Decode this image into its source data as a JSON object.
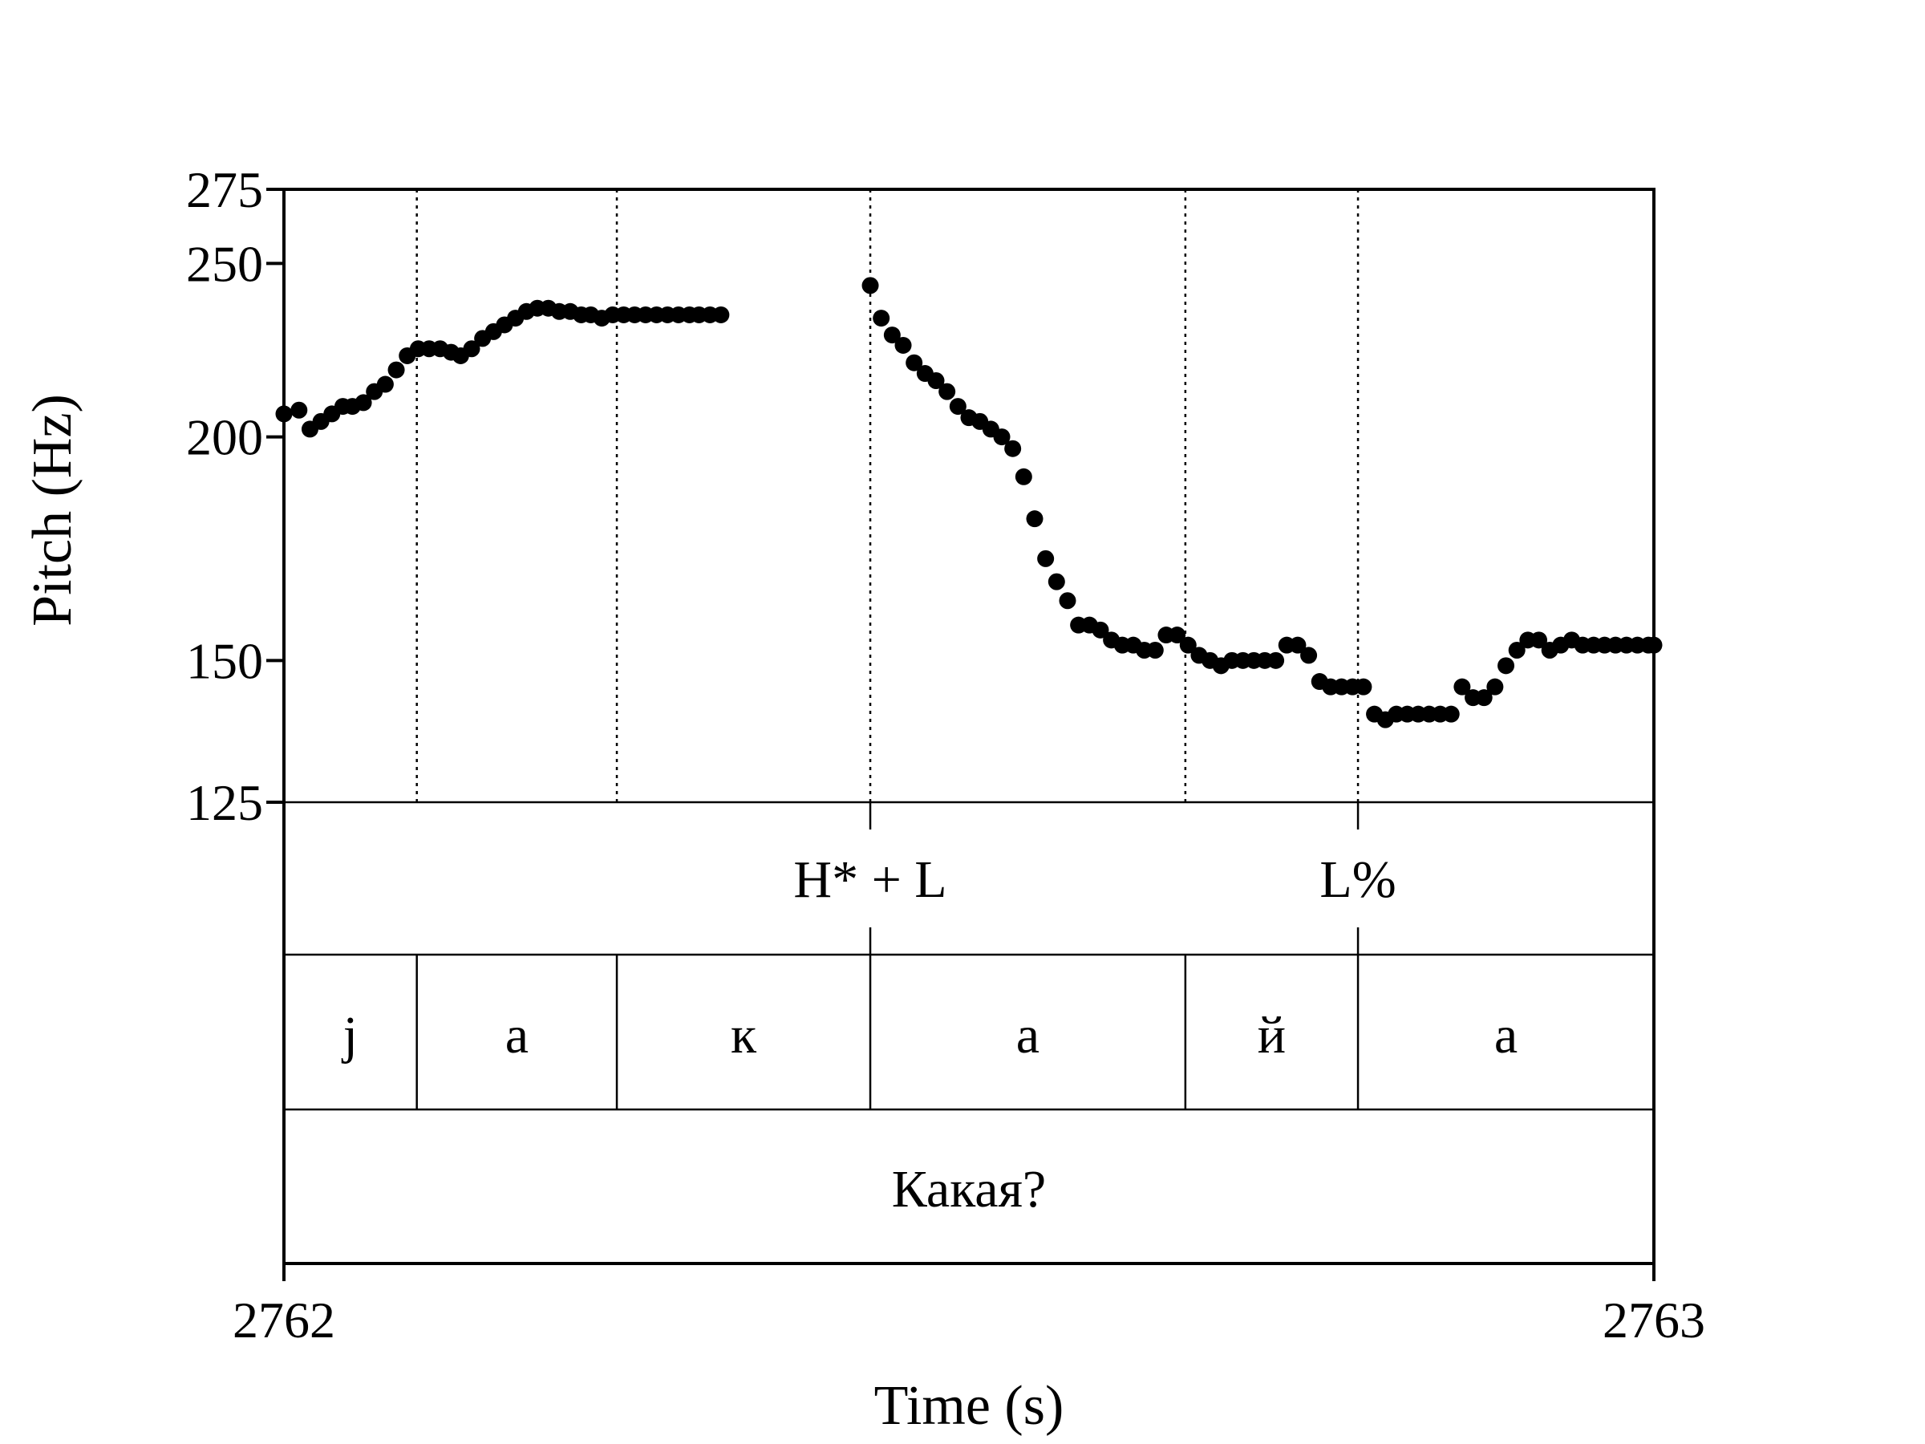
{
  "chart_data": {
    "type": "scatter",
    "xlabel": "Time (s)",
    "ylabel": "Pitch (Hz)",
    "xlim": [
      2762,
      2763
    ],
    "ylim": [
      125,
      275
    ],
    "y_scale": "log",
    "x_ticks": [
      "2762",
      "2763"
    ],
    "y_ticks": [
      {
        "value": 275,
        "label": "275"
      },
      {
        "value": 250,
        "label": "250"
      },
      {
        "value": 200,
        "label": "200"
      },
      {
        "value": 150,
        "label": "150"
      },
      {
        "value": 125,
        "label": "125"
      }
    ],
    "grid": false,
    "legend": "none",
    "point_color": "#000000",
    "series": [
      {
        "x": [
          2762.0,
          2762.011,
          2762.019,
          2762.027,
          2762.035,
          2762.043,
          2762.05,
          2762.058,
          2762.066,
          2762.074,
          2762.082,
          2762.09,
          2762.098,
          2762.106,
          2762.114,
          2762.122,
          2762.129,
          2762.137,
          2762.145,
          2762.153,
          2762.161,
          2762.169,
          2762.177,
          2762.185,
          2762.193,
          2762.201,
          2762.209,
          2762.217,
          2762.224,
          2762.232,
          2762.24,
          2762.248,
          2762.256,
          2762.264,
          2762.272,
          2762.28,
          2762.288,
          2762.296,
          2762.303,
          2762.311,
          2762.319
        ],
        "y": [
          206,
          207,
          202,
          204,
          206,
          208,
          208,
          209,
          212,
          214,
          218,
          222,
          224,
          224,
          224,
          223,
          222,
          224,
          227,
          229,
          231,
          233,
          235,
          236,
          236,
          235,
          235,
          234,
          234,
          233,
          234,
          234,
          234,
          234,
          234,
          234,
          234,
          234,
          234,
          234,
          234
        ],
        "name": ""
      },
      {
        "x": [
          2762.428,
          2762.436,
          2762.444,
          2762.452,
          2762.46,
          2762.468,
          2762.476,
          2762.484,
          2762.492,
          2762.5,
          2762.508,
          2762.516,
          2762.524,
          2762.532,
          2762.54,
          2762.548,
          2762.556,
          2762.564,
          2762.572,
          2762.58,
          2762.588,
          2762.596,
          2762.604,
          2762.612,
          2762.62,
          2762.628,
          2762.636,
          2762.644,
          2762.652,
          2762.66,
          2762.668,
          2762.676,
          2762.684,
          2762.692,
          2762.7,
          2762.708,
          2762.716,
          2762.724,
          2762.732,
          2762.74,
          2762.748,
          2762.756,
          2762.764,
          2762.772,
          2762.78,
          2762.788,
          2762.796,
          2762.804,
          2762.812,
          2762.82,
          2762.828,
          2762.836,
          2762.844,
          2762.852,
          2762.86,
          2762.868,
          2762.876,
          2762.884,
          2762.892,
          2762.9,
          2762.908,
          2762.916,
          2762.924,
          2762.932,
          2762.94,
          2762.948,
          2762.956,
          2762.964,
          2762.972,
          2762.98,
          2762.988,
          2762.996,
          2763.0
        ],
        "y": [
          243,
          233,
          228,
          225,
          220,
          217,
          215,
          212,
          208,
          205,
          204,
          202,
          200,
          197,
          190,
          180,
          171,
          166,
          162,
          157,
          157,
          156,
          154,
          153,
          153,
          152,
          152,
          155,
          155,
          153,
          151,
          150,
          149,
          150,
          150,
          150,
          150,
          150,
          153,
          153,
          151,
          146,
          145,
          145,
          145,
          145,
          140,
          139,
          140,
          140,
          140,
          140,
          140,
          140,
          145,
          143,
          143,
          145,
          149,
          152,
          154,
          154,
          152,
          153,
          154,
          153,
          153,
          153,
          153,
          153,
          153,
          153,
          153
        ],
        "name": ""
      }
    ]
  },
  "tiers": {
    "boundaries": [
      2762.097,
      2762.243,
      2762.428,
      2762.658,
      2762.784
    ],
    "tones": [
      {
        "text": "H* + L",
        "x": 2762.428
      },
      {
        "text": "L%",
        "x": 2762.784
      }
    ],
    "segments": [
      {
        "text": "j",
        "start": 2762.0,
        "end": 2762.097
      },
      {
        "text": "а",
        "start": 2762.097,
        "end": 2762.243
      },
      {
        "text": "к",
        "start": 2762.243,
        "end": 2762.428
      },
      {
        "text": "а",
        "start": 2762.428,
        "end": 2762.658
      },
      {
        "text": "й",
        "start": 2762.658,
        "end": 2762.784
      },
      {
        "text": "а",
        "start": 2762.784,
        "end": 2763.0
      }
    ],
    "word": {
      "text": "Какая?"
    }
  }
}
